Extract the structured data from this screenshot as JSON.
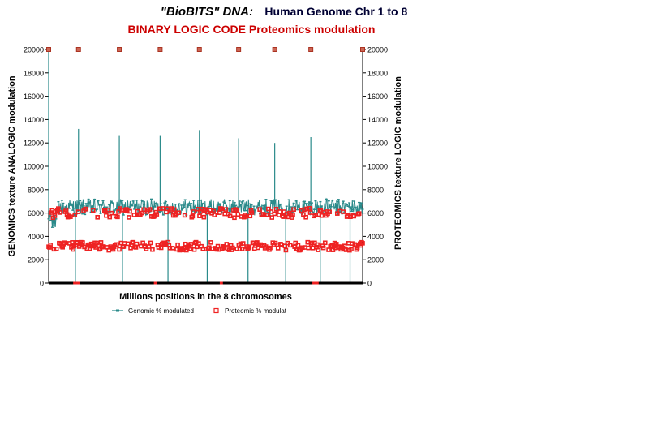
{
  "chart_data": {
    "type": "line",
    "title_part1": "\"BioBITS\" DNA:",
    "title_part2": "Human Genome Chr 1 to 8",
    "subtitle": "BINARY LOGIC CODE Proteomics modulation",
    "xlabel": "Millions positions in the 8 chromosomes",
    "ylabel_left": "GENOMICS texture ANALOGIC modulation",
    "ylabel_right": "PROTEOMICS texture LOGIC modulation",
    "ylim": [
      0,
      20000
    ],
    "yticks": [
      "0",
      "2000",
      "4000",
      "6000",
      "8000",
      "10000",
      "12000",
      "14000",
      "16000",
      "18000",
      "20000"
    ],
    "legend_position": "bottom",
    "chromosome_boundaries": [
      0,
      0.095,
      0.225,
      0.355,
      0.48,
      0.605,
      0.72,
      0.835,
      1.0
    ],
    "series": [
      {
        "name": "Genomic % modulated",
        "color": "#2a8a8a",
        "marker": "dash",
        "typical_range": [
          5800,
          7200
        ],
        "spike_values": [
          20000,
          13200,
          12600,
          12600,
          13100,
          12400,
          12000,
          12500
        ],
        "dip_values": [
          0,
          0,
          0,
          0,
          0,
          0,
          0,
          0
        ]
      },
      {
        "name": "Proteomic % modulat",
        "color": "#ee2222",
        "marker": "square",
        "upper_band": [
          5600,
          6400
        ],
        "lower_band": [
          2800,
          3500
        ],
        "top_markers_value": 20000
      }
    ]
  }
}
